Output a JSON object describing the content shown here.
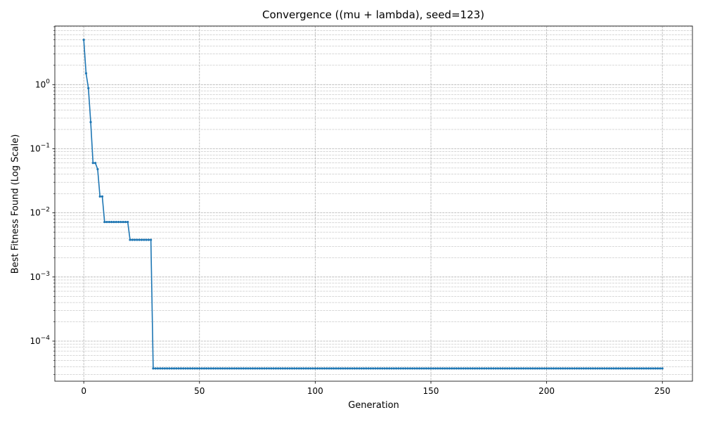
{
  "chart_data": {
    "type": "line",
    "title": "Convergence ((mu + lambda), seed=123)",
    "xlabel": "Generation",
    "ylabel": "Best Fitness Found (Log Scale)",
    "yscale": "log",
    "xlim": [
      -12.5,
      263
    ],
    "ylim": [
      2.37e-05,
      8.2
    ],
    "grid": "both",
    "x_ticks": [
      0,
      50,
      100,
      150,
      200,
      250
    ],
    "y_ticks": [
      {
        "value": 0.0001,
        "mantissa": "10",
        "exponent": "−4"
      },
      {
        "value": 0.001,
        "mantissa": "10",
        "exponent": "−3"
      },
      {
        "value": 0.01,
        "mantissa": "10",
        "exponent": "−2"
      },
      {
        "value": 0.1,
        "mantissa": "10",
        "exponent": "−1"
      },
      {
        "value": 1,
        "mantissa": "10",
        "exponent": "0"
      }
    ],
    "series": [
      {
        "color": "#1f77b4",
        "marker": "circle",
        "points": [
          [
            0,
            5.0
          ],
          [
            1,
            1.5
          ],
          [
            2,
            0.88
          ],
          [
            3,
            0.26
          ],
          [
            4,
            0.06
          ],
          [
            5,
            0.06
          ],
          [
            6,
            0.048
          ],
          [
            7,
            0.018
          ],
          [
            8,
            0.018
          ],
          [
            9,
            0.0072
          ],
          [
            19,
            0.0072
          ],
          [
            20,
            0.0038
          ],
          [
            29,
            0.0038
          ],
          [
            30,
            3.75e-05
          ],
          [
            250,
            3.75e-05
          ]
        ]
      }
    ]
  }
}
